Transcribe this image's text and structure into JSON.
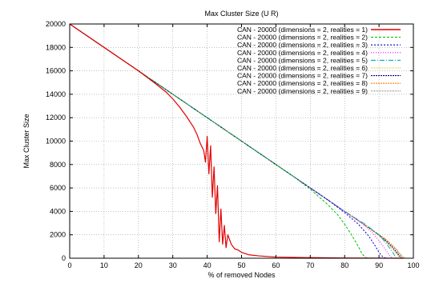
{
  "chart_data": {
    "type": "line",
    "title": "Max Cluster Size (U R)",
    "xlabel": "% of removed Nodes",
    "ylabel": "Max Cluster Size",
    "xlim": [
      0,
      100
    ],
    "ylim": [
      0,
      20000
    ],
    "xticks": [
      0,
      10,
      20,
      30,
      40,
      50,
      60,
      70,
      80,
      90,
      100
    ],
    "yticks": [
      0,
      2000,
      4000,
      6000,
      8000,
      10000,
      12000,
      14000,
      16000,
      18000,
      20000
    ],
    "xtick_labels": [
      "0",
      "10",
      "20",
      "30",
      "40",
      "50",
      "60",
      "70",
      "80",
      "90",
      "100"
    ],
    "ytick_labels": [
      "0",
      "2000",
      "4000",
      "6000",
      "8000",
      "10000",
      "12000",
      "14000",
      "16000",
      "18000",
      "20000"
    ],
    "grid": true,
    "legend_position": "top-right",
    "series": [
      {
        "name": "CAN - 20000 (dimensions = 2, realities = 1)",
        "color": "#e00000",
        "dash": "solid",
        "x": [
          0,
          10,
          20,
          25,
          28,
          30,
          32,
          34,
          36,
          37,
          38,
          39,
          39.5,
          40,
          40.5,
          41,
          41.5,
          42,
          42.5,
          43,
          43.5,
          44,
          44.5,
          45,
          45.5,
          46,
          47,
          48,
          49,
          50,
          52,
          55,
          60,
          70,
          80,
          90,
          97
        ],
        "y": [
          20000,
          18000,
          16000,
          14900,
          14200,
          13600,
          12900,
          12100,
          11200,
          10600,
          9800,
          9200,
          8200,
          10400,
          7200,
          9600,
          5200,
          7800,
          3800,
          6200,
          1400,
          4200,
          1200,
          2800,
          900,
          2000,
          1200,
          800,
          700,
          500,
          300,
          200,
          100,
          50,
          20,
          10,
          0
        ]
      },
      {
        "name": "CAN - 20000 (dimensions = 2, realities = 2)",
        "color": "#00c000",
        "dash": "3 2",
        "x": [
          0,
          10,
          20,
          30,
          40,
          50,
          60,
          65,
          70,
          75,
          78,
          80,
          82,
          84,
          85,
          86,
          86.5,
          87
        ],
        "y": [
          20000,
          18000,
          16000,
          14000,
          12000,
          10000,
          8000,
          7000,
          5900,
          4600,
          3700,
          2900,
          2000,
          1000,
          400,
          80,
          20,
          0
        ]
      },
      {
        "name": "CAN - 20000 (dimensions = 2, realities = 3)",
        "color": "#0000d0",
        "dash": "2 2",
        "x": [
          0,
          10,
          20,
          30,
          40,
          50,
          60,
          70,
          75,
          80,
          84,
          87,
          89,
          90,
          91,
          92
        ],
        "y": [
          20000,
          18000,
          16000,
          14000,
          12000,
          10000,
          8000,
          6000,
          5000,
          3900,
          2900,
          1900,
          1000,
          500,
          150,
          0
        ]
      },
      {
        "name": "CAN - 20000 (dimensions = 2, realities = 4)",
        "color": "#ff00ff",
        "dash": "1 2",
        "x": [
          0,
          10,
          20,
          30,
          40,
          50,
          60,
          70,
          80,
          85,
          88,
          90,
          92,
          93,
          94
        ],
        "y": [
          20000,
          18000,
          16000,
          14000,
          12000,
          10000,
          8000,
          6000,
          4000,
          3000,
          2200,
          1500,
          700,
          250,
          0
        ]
      },
      {
        "name": "CAN - 20000 (dimensions = 2, realities = 5)",
        "color": "#00b0c0",
        "dash": "6 2 1 2",
        "x": [
          0,
          10,
          20,
          30,
          40,
          50,
          60,
          70,
          80,
          86,
          90,
          92,
          94,
          95
        ],
        "y": [
          20000,
          18000,
          16000,
          14000,
          12000,
          10000,
          8000,
          6000,
          4000,
          2900,
          2000,
          1300,
          500,
          0
        ]
      },
      {
        "name": "CAN - 20000 (dimensions = 2, realities = 6)",
        "color": "#e0c000",
        "dash": "1 1",
        "x": [
          0,
          10,
          20,
          30,
          40,
          50,
          60,
          70,
          80,
          87,
          91,
          93,
          95,
          96
        ],
        "y": [
          20000,
          18000,
          16000,
          14000,
          12000,
          10000,
          8000,
          6000,
          4000,
          2600,
          1700,
          1100,
          400,
          0
        ]
      },
      {
        "name": "CAN - 20000 (dimensions = 2, realities = 7)",
        "color": "#000080",
        "dash": "2 1",
        "x": [
          0,
          10,
          20,
          30,
          40,
          50,
          60,
          70,
          80,
          88,
          92,
          94,
          95.5,
          96.5
        ],
        "y": [
          20000,
          18000,
          16000,
          14000,
          12000,
          10000,
          8000,
          6000,
          4000,
          2400,
          1500,
          900,
          350,
          0
        ]
      },
      {
        "name": "CAN - 20000 (dimensions = 2, realities = 8)",
        "color": "#ff8000",
        "dash": "2 1",
        "x": [
          0,
          10,
          20,
          30,
          40,
          50,
          60,
          70,
          80,
          88,
          92,
          94.5,
          96,
          97
        ],
        "y": [
          20000,
          18000,
          16000,
          14000,
          12000,
          10000,
          8000,
          6000,
          4000,
          2400,
          1600,
          900,
          300,
          0
        ]
      },
      {
        "name": "CAN - 20000 (dimensions = 2, realities = 9)",
        "color": "#808080",
        "dash": "1 1",
        "x": [
          0,
          10,
          20,
          30,
          40,
          50,
          60,
          70,
          80,
          88,
          92,
          95,
          96.5,
          97.5
        ],
        "y": [
          20000,
          18000,
          16000,
          14000,
          12000,
          10000,
          8000,
          6000,
          4000,
          2400,
          1600,
          800,
          250,
          0
        ]
      }
    ]
  }
}
